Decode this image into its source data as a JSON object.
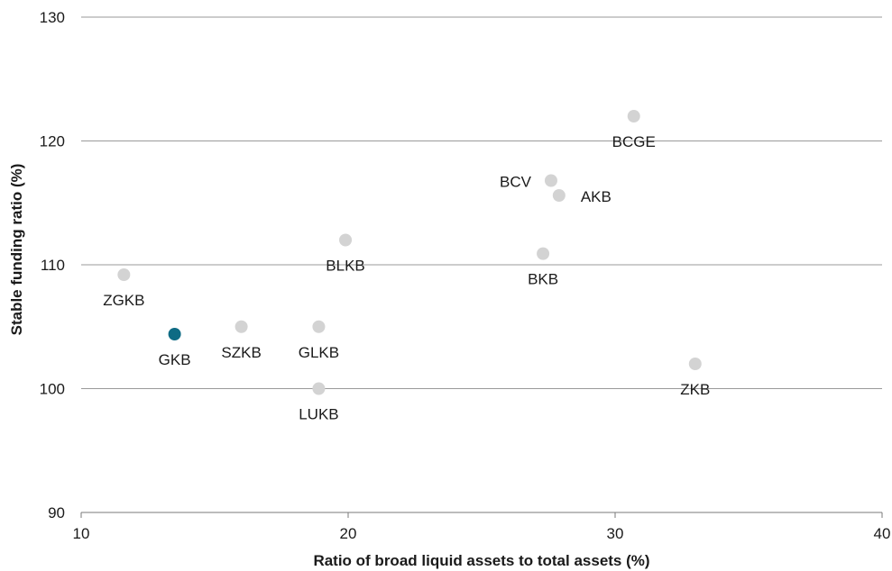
{
  "chart_data": {
    "type": "scatter",
    "xlabel": "Ratio of broad liquid assets to total assets (%)",
    "ylabel": "Stable funding ratio (%)",
    "xlim": [
      10,
      40
    ],
    "ylim": [
      90,
      130
    ],
    "xticks": [
      "10",
      "20",
      "30",
      "40"
    ],
    "yticks": [
      "90",
      "100",
      "110",
      "120",
      "130"
    ],
    "grid": "horizontal",
    "default_color": "#d3d3d3",
    "highlight_color": "#0e6b84",
    "points": [
      {
        "label": "ZGKB",
        "x": 11.6,
        "y": 109.2,
        "highlight": false,
        "label_pos": "below"
      },
      {
        "label": "GKB",
        "x": 13.5,
        "y": 104.4,
        "highlight": true,
        "label_pos": "below"
      },
      {
        "label": "SZKB",
        "x": 16.0,
        "y": 105.0,
        "highlight": false,
        "label_pos": "below"
      },
      {
        "label": "GLKB",
        "x": 18.9,
        "y": 105.0,
        "highlight": false,
        "label_pos": "below"
      },
      {
        "label": "LUKB",
        "x": 18.9,
        "y": 100.0,
        "highlight": false,
        "label_pos": "below"
      },
      {
        "label": "BLKB",
        "x": 19.9,
        "y": 112.0,
        "highlight": false,
        "label_pos": "below"
      },
      {
        "label": "BCV",
        "x": 27.6,
        "y": 116.8,
        "highlight": false,
        "label_pos": "left"
      },
      {
        "label": "AKB",
        "x": 27.9,
        "y": 115.6,
        "highlight": false,
        "label_pos": "right"
      },
      {
        "label": "BKB",
        "x": 27.3,
        "y": 110.9,
        "highlight": false,
        "label_pos": "below"
      },
      {
        "label": "BCGE",
        "x": 30.7,
        "y": 122.0,
        "highlight": false,
        "label_pos": "below"
      },
      {
        "label": "ZKB",
        "x": 33.0,
        "y": 102.0,
        "highlight": false,
        "label_pos": "below"
      }
    ]
  }
}
